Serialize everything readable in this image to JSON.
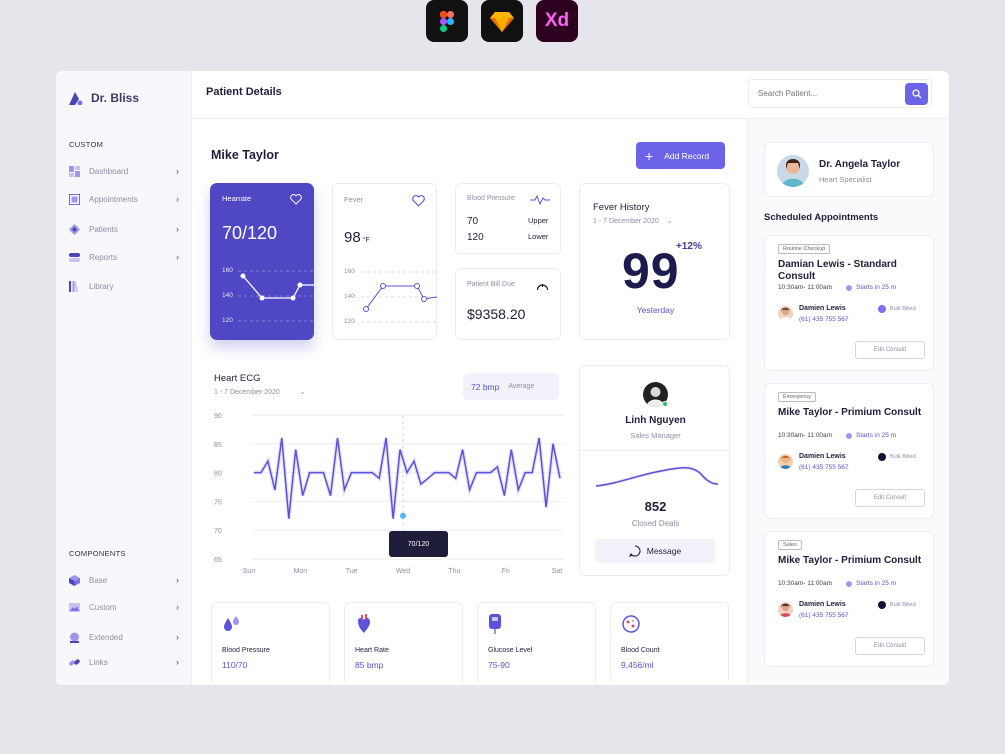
{
  "tools": [
    "figma",
    "sketch",
    "xd"
  ],
  "tool_xd_label": "Xd",
  "brand": {
    "name": "Dr. Bliss"
  },
  "sidebar": {
    "custom_label": "CUSTOM",
    "items": [
      "Dashboard",
      "Appointments",
      "Patients",
      "Reports",
      "Library"
    ],
    "components_label": "COMPONENTS",
    "component_items": [
      "Base",
      "Custom",
      "Extended",
      "Links"
    ]
  },
  "header": {
    "title": "Patient Details",
    "search_placeholder": "Search Patient..."
  },
  "patient": {
    "name": "Mike Taylor",
    "add_record": "Add Record"
  },
  "heartrate": {
    "label": "Hearrate",
    "value": "70/120",
    "ticks": [
      "160",
      "140",
      "120"
    ]
  },
  "fever": {
    "label": "Fever",
    "value": "98",
    "unit": "°F",
    "ticks": [
      "160",
      "140",
      "120"
    ]
  },
  "blood_pressure": {
    "label": "Blood Pressure",
    "upper_value": "70",
    "upper_label": "Upper",
    "lower_value": "120",
    "lower_label": "Lower"
  },
  "bill": {
    "label": "Patient Bill Due",
    "value": "$9358.20"
  },
  "fever_history": {
    "title": "Fever History",
    "range": "1 - 7 December 2020",
    "value": "99",
    "change": "+12%",
    "caption": "Yesterday"
  },
  "ecg": {
    "title": "Heart ECG",
    "range": "1 - 7 December 2020",
    "bpm": "72 bmp",
    "avg": "Average",
    "tooltip": "70/120"
  },
  "chart_data": {
    "type": "line",
    "title": "Heart ECG",
    "x_labels": [
      "Sun",
      "Mon",
      "Tue",
      "Wed",
      "Thu",
      "Fri",
      "Sat"
    ],
    "ylim": [
      65,
      90
    ],
    "y_ticks": [
      90,
      85,
      80,
      75,
      70,
      65
    ],
    "series": [
      {
        "values": [
          80,
          80,
          82,
          77,
          86,
          72,
          84,
          76,
          80,
          80,
          80,
          76,
          86,
          77,
          80,
          80,
          80,
          80,
          79,
          86,
          72,
          84,
          80,
          82,
          78,
          79,
          80,
          80,
          80,
          79,
          84,
          77,
          80,
          80,
          80,
          81,
          76,
          84,
          77,
          80,
          80,
          86,
          74,
          85,
          79
        ]
      }
    ]
  },
  "contact": {
    "name": "Linh Nguyen",
    "role": "Sales Manager",
    "deals": "852",
    "deals_label": "Closed Deals",
    "message": "Message"
  },
  "stats": [
    {
      "label": "Blood Pressure",
      "value": "110/70",
      "icon": "drops-icon"
    },
    {
      "label": "Heart Rate",
      "value": "85 bmp",
      "icon": "heart-organ-icon"
    },
    {
      "label": "Glucose Level",
      "value": "75-90",
      "icon": "glucose-meter-icon"
    },
    {
      "label": "Blood Count",
      "value": "9,456/ml",
      "icon": "blood-cell-icon"
    }
  ],
  "doctor": {
    "name": "Dr. Angela Taylor",
    "role": "Heart Specialist"
  },
  "appointments": {
    "title": "Scheduled Appointments",
    "items": [
      {
        "tag": "Routine Checkup",
        "title": "Damian Lewis - Standard Consult",
        "time": "10:30am- 11:00am",
        "starts": "Starts in 25 m",
        "person": "Damien Lewis",
        "phone": "(61) 435 755 567",
        "billing": "Bulk Billed",
        "billing_color": "#7b6ff0",
        "action": "Edit Consult"
      },
      {
        "tag": "Emergency",
        "title": "Mike Taylor - Primium Consult",
        "time": "10:30am- 11:00am",
        "starts": "Starts in 25 m",
        "person": "Damien Lewis",
        "phone": "(61) 435 755 567",
        "billing": "Bulk Billed",
        "billing_color": "#111133",
        "action": "Edit Consult"
      },
      {
        "tag": "Sales",
        "title": "Mike Taylor - Primium Consult",
        "time": "10:30am- 11:00am",
        "starts": "Starts in 25 m",
        "person": "Damien Lewis",
        "phone": "(61) 435 755 567",
        "billing": "Bulk Billed",
        "billing_color": "#111133",
        "action": "Edit Consult"
      }
    ]
  },
  "colors": {
    "accent": "#5a52d8",
    "button": "#6c63e8",
    "background": "#e4e6ec"
  }
}
